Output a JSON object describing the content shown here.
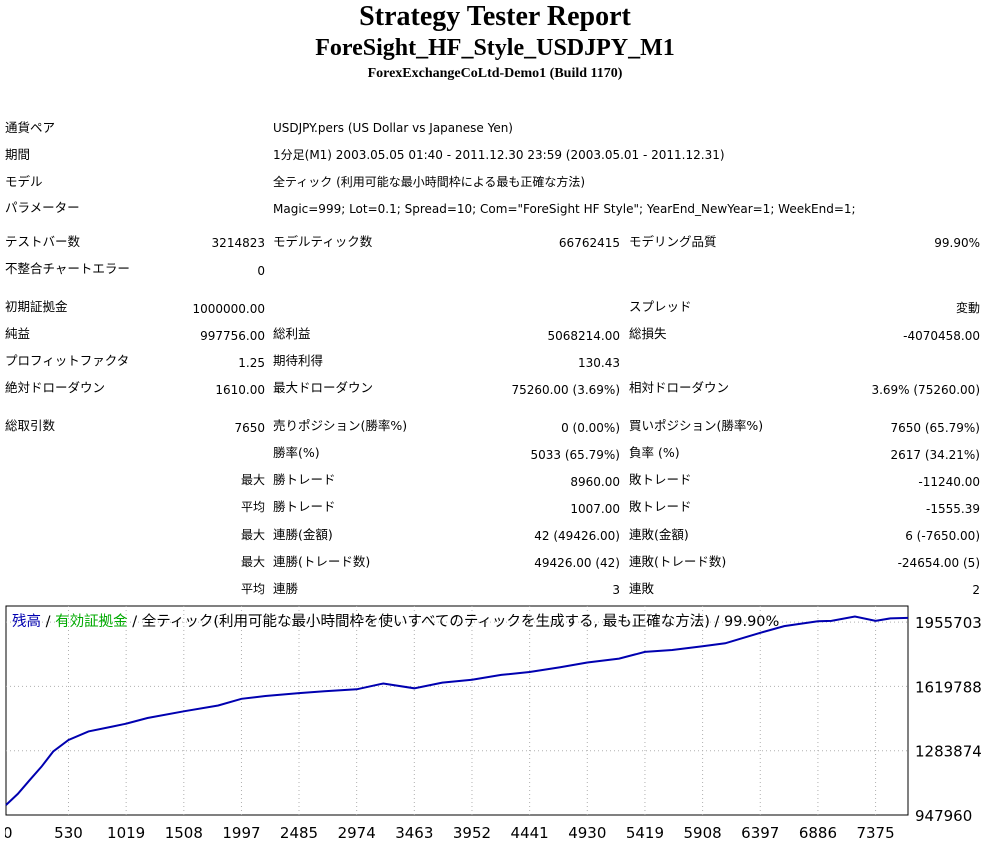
{
  "header": {
    "title": "Strategy Tester Report",
    "expert": "ForeSight_HF_Style_USDJPY_M1",
    "server": "ForexExchangeCoLtd-Demo1 (Build 1170)"
  },
  "info": {
    "symbol_label": "通貨ペア",
    "symbol_value": "USDJPY.pers (US Dollar vs Japanese Yen)",
    "period_label": "期間",
    "period_value": "1分足(M1) 2003.05.05 01:40 - 2011.12.30 23:59 (2003.05.01 - 2011.12.31)",
    "model_label": "モデル",
    "model_value": "全ティック (利用可能な最小時間枠による最も正確な方法)",
    "params_label": "パラメーター",
    "params_value": "Magic=999; Lot=0.1; Spread=10; Com=\"ForeSight HF Style\"; YearEnd_NewYear=1; WeekEnd=1;"
  },
  "stats": {
    "bars_label": "テストバー数",
    "bars_value": "3214823",
    "ticks_label": "モデルティック数",
    "ticks_value": "66762415",
    "quality_label": "モデリング品質",
    "quality_value": "99.90%",
    "errors_label": "不整合チャートエラー",
    "errors_value": "0",
    "deposit_label": "初期証拠金",
    "deposit_value": "1000000.00",
    "spread_label": "スプレッド",
    "spread_value": "変動",
    "net_label": "純益",
    "net_value": "997756.00",
    "gross_profit_label": "総利益",
    "gross_profit_value": "5068214.00",
    "gross_loss_label": "総損失",
    "gross_loss_value": "-4070458.00",
    "pf_label": "プロフィットファクタ",
    "pf_value": "1.25",
    "expected_label": "期待利得",
    "expected_value": "130.43",
    "abs_dd_label": "絶対ドローダウン",
    "abs_dd_value": "1610.00",
    "max_dd_label": "最大ドローダウン",
    "max_dd_value": "75260.00 (3.69%)",
    "rel_dd_label": "相対ドローダウン",
    "rel_dd_value": "3.69% (75260.00)",
    "total_label": "総取引数",
    "total_value": "7650",
    "short_label": "売りポジション(勝率%)",
    "short_value": "0 (0.00%)",
    "long_label": "買いポジション(勝率%)",
    "long_value": "7650 (65.79%)",
    "win_label": "勝率(%)",
    "win_value": "5033 (65.79%)",
    "loss_label": "負率 (%)",
    "loss_value": "2617 (34.21%)",
    "max_prefix": "最大",
    "avg_prefix": "平均",
    "largest_win_label": "勝トレード",
    "largest_win_value": "8960.00",
    "largest_loss_label": "敗トレード",
    "largest_loss_value": "-11240.00",
    "avg_win_label": "勝トレード",
    "avg_win_value": "1007.00",
    "avg_loss_label": "敗トレード",
    "avg_loss_value": "-1555.39",
    "max_cons_win_label": "連勝(金額)",
    "max_cons_win_value": "42 (49426.00)",
    "max_cons_loss_label": "連敗(金額)",
    "max_cons_loss_value": "6 (-7650.00)",
    "max_cons_profit_label": "連勝(トレード数)",
    "max_cons_profit_value": "49426.00 (42)",
    "max_cons_lossamt_label": "連敗(トレード数)",
    "max_cons_lossamt_value": "-24654.00 (5)",
    "avg_cons_win_label": "連勝",
    "avg_cons_win_value": "3",
    "avg_cons_loss_label": "連敗",
    "avg_cons_loss_value": "2"
  },
  "colors": {
    "balance": "#0000b0",
    "equity": "#00aa00",
    "grid": "#b0b0b0"
  },
  "chart_data": {
    "type": "line",
    "legend_balance": "残高",
    "legend_sep1": " / ",
    "legend_equity": "有効証拠金",
    "legend_rest": " / 全ティック(利用可能な最小時間枠を使いすべてのティックを生成する, 最も正確な方法) / 99.90%",
    "x_ticks": [
      0,
      530,
      1019,
      1508,
      1997,
      2485,
      2974,
      3463,
      3952,
      4441,
      4930,
      5419,
      5908,
      6397,
      6886,
      7375
    ],
    "y_ticks": [
      947960,
      1283874,
      1619788,
      1955703
    ],
    "xlim": [
      0,
      7650
    ],
    "ylim": [
      947960,
      2040000
    ],
    "series": [
      {
        "name": "残高",
        "x": [
          0,
          100,
          200,
          300,
          400,
          530,
          700,
          900,
          1019,
          1200,
          1508,
          1800,
          1997,
          2200,
          2485,
          2700,
          2974,
          3200,
          3463,
          3700,
          3952,
          4200,
          4441,
          4700,
          4930,
          5200,
          5419,
          5650,
          5908,
          6100,
          6397,
          6600,
          6886,
          7000,
          7200,
          7375,
          7500,
          7650
        ],
        "values": [
          1000000,
          1058000,
          1130000,
          1200000,
          1280000,
          1340000,
          1385000,
          1410000,
          1425000,
          1455000,
          1490000,
          1520000,
          1555000,
          1570000,
          1585000,
          1595000,
          1605000,
          1635000,
          1610000,
          1640000,
          1655000,
          1680000,
          1695000,
          1720000,
          1745000,
          1765000,
          1800000,
          1810000,
          1830000,
          1845000,
          1900000,
          1935000,
          1960000,
          1962000,
          1985000,
          1962000,
          1975000,
          1978000
        ]
      }
    ]
  }
}
